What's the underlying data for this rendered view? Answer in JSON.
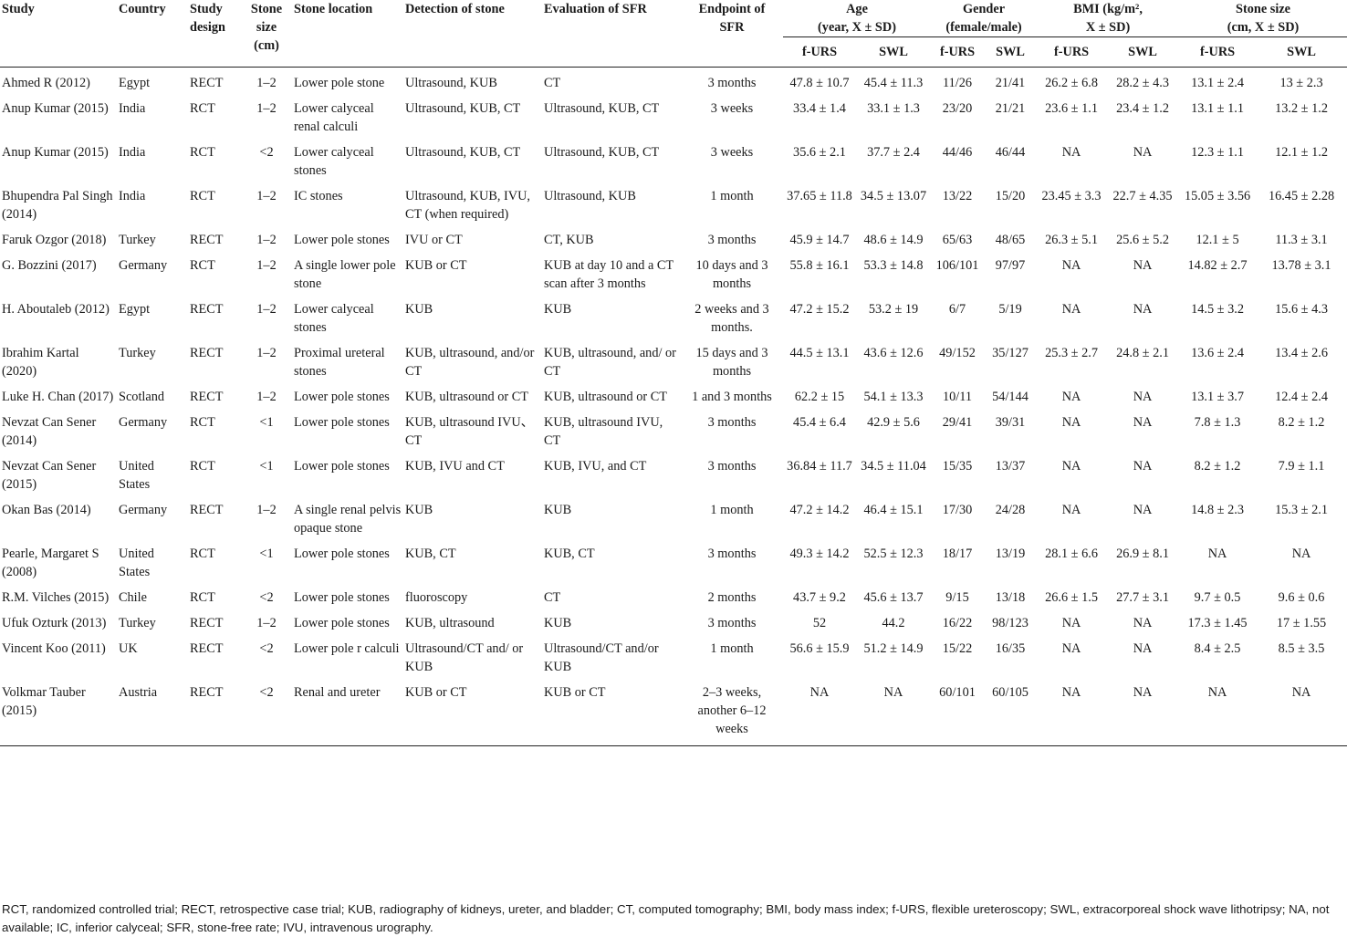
{
  "headers": {
    "study": "Study",
    "country": "Country",
    "design": [
      "Study",
      "design"
    ],
    "stone_size_cm": [
      "Stone",
      "size",
      "(cm)"
    ],
    "location": "Stone location",
    "detection": "Detection of stone",
    "evaluation": "Evaluation of SFR",
    "endpoint": [
      "Endpoint of",
      "SFR"
    ],
    "age": [
      "Age",
      "(year, X ± SD)"
    ],
    "gender": [
      "Gender",
      "(female/male)"
    ],
    "bmi": [
      "BMI (kg/m²,",
      "X ± SD)"
    ],
    "stone_size": [
      "Stone size",
      "(cm, X ± SD)"
    ],
    "sub_furs": "f-URS",
    "sub_swl": "SWL"
  },
  "rows": [
    {
      "study": "Ahmed R (2012)",
      "country": "Egypt",
      "design": "RECT",
      "size": "1–2",
      "location": "Lower pole stone",
      "detection": "Ultrasound, KUB",
      "evaluation": "CT",
      "endpoint": "3 months",
      "age_furs": "47.8 ± 10.7",
      "age_swl": "45.4 ± 11.3",
      "g_furs": "11/26",
      "g_swl": "21/41",
      "bmi_furs": "26.2 ± 6.8",
      "bmi_swl": "28.2 ± 4.3",
      "ss_furs": "13.1 ± 2.4",
      "ss_swl": "13 ± 2.3"
    },
    {
      "study": "Anup Kumar (2015)",
      "country": "India",
      "design": "RCT",
      "size": "1–2",
      "location": "Lower calyceal renal calculi",
      "detection": "Ultrasound, KUB, CT",
      "evaluation": "Ultrasound, KUB, CT",
      "endpoint": "3 weeks",
      "age_furs": "33.4 ± 1.4",
      "age_swl": "33.1 ± 1.3",
      "g_furs": "23/20",
      "g_swl": "21/21",
      "bmi_furs": "23.6 ± 1.1",
      "bmi_swl": "23.4 ± 1.2",
      "ss_furs": "13.1 ± 1.1",
      "ss_swl": "13.2 ± 1.2"
    },
    {
      "study": "Anup Kumar (2015)",
      "country": "India",
      "design": "RCT",
      "size": "<2",
      "location": "Lower calyceal stones",
      "detection": "Ultrasound, KUB, CT",
      "evaluation": "Ultrasound, KUB, CT",
      "endpoint": "3 weeks",
      "age_furs": "35.6 ± 2.1",
      "age_swl": "37.7 ± 2.4",
      "g_furs": "44/46",
      "g_swl": "46/44",
      "bmi_furs": "NA",
      "bmi_swl": "NA",
      "ss_furs": "12.3 ± 1.1",
      "ss_swl": "12.1 ± 1.2"
    },
    {
      "study": "Bhupendra Pal Singh (2014)",
      "country": "India",
      "design": "RCT",
      "size": "1–2",
      "location": "IC stones",
      "detection": "Ultrasound, KUB, IVU, CT (when required)",
      "evaluation": "Ultrasound, KUB",
      "endpoint": "1 month",
      "age_furs": "37.65 ± 11.8",
      "age_swl": "34.5 ± 13.07",
      "g_furs": "13/22",
      "g_swl": "15/20",
      "bmi_furs": "23.45 ± 3.3",
      "bmi_swl": "22.7 ± 4.35",
      "ss_furs": "15.05 ± 3.56",
      "ss_swl": "16.45 ± 2.28"
    },
    {
      "study": "Faruk Ozgor (2018)",
      "country": "Turkey",
      "design": "RECT",
      "size": "1–2",
      "location": "Lower pole stones",
      "detection": "IVU or CT",
      "evaluation": "CT, KUB",
      "endpoint": "3 months",
      "age_furs": "45.9 ± 14.7",
      "age_swl": "48.6 ± 14.9",
      "g_furs": "65/63",
      "g_swl": "48/65",
      "bmi_furs": "26.3 ± 5.1",
      "bmi_swl": "25.6 ± 5.2",
      "ss_furs": "12.1 ± 5",
      "ss_swl": "11.3 ± 3.1"
    },
    {
      "study": "G. Bozzini (2017)",
      "country": "Germany",
      "design": "RCT",
      "size": "1–2",
      "location": "A single lower pole stone",
      "detection": "KUB or CT",
      "evaluation": "KUB at day 10 and a CT scan after 3 months",
      "endpoint": "10 days and 3 months",
      "age_furs": "55.8 ± 16.1",
      "age_swl": "53.3 ± 14.8",
      "g_furs": "106/101",
      "g_swl": "97/97",
      "bmi_furs": "NA",
      "bmi_swl": "NA",
      "ss_furs": "14.82 ± 2.7",
      "ss_swl": "13.78 ± 3.1"
    },
    {
      "study": "H. Aboutaleb (2012)",
      "country": "Egypt",
      "design": "RECT",
      "size": "1–2",
      "location": "Lower calyceal stones",
      "detection": "KUB",
      "evaluation": "KUB",
      "endpoint": "2 weeks and 3 months.",
      "age_furs": "47.2 ± 15.2",
      "age_swl": "53.2 ± 19",
      "g_furs": "6/7",
      "g_swl": "5/19",
      "bmi_furs": "NA",
      "bmi_swl": "NA",
      "ss_furs": "14.5 ± 3.2",
      "ss_swl": "15.6 ± 4.3"
    },
    {
      "study": "Ibrahim Kartal (2020)",
      "country": "Turkey",
      "design": "RECT",
      "size": "1–2",
      "location": "Proximal ureteral stones",
      "detection": "KUB, ultrasound, and/or CT",
      "evaluation": "KUB, ultrasound, and/ or CT",
      "endpoint": "15 days and 3 months",
      "age_furs": "44.5 ± 13.1",
      "age_swl": "43.6 ± 12.6",
      "g_furs": "49/152",
      "g_swl": "35/127",
      "bmi_furs": "25.3 ± 2.7",
      "bmi_swl": "24.8 ± 2.1",
      "ss_furs": "13.6 ± 2.4",
      "ss_swl": "13.4 ± 2.6"
    },
    {
      "study": "Luke H. Chan (2017)",
      "country": "Scotland",
      "design": "RECT",
      "size": "1–2",
      "location": "Lower pole stones",
      "detection": "KUB, ultrasound or CT",
      "evaluation": "KUB, ultrasound or CT",
      "endpoint": "1 and 3 months",
      "age_furs": "62.2 ± 15",
      "age_swl": "54.1 ± 13.3",
      "g_furs": "10/11",
      "g_swl": "54/144",
      "bmi_furs": "NA",
      "bmi_swl": "NA",
      "ss_furs": "13.1 ± 3.7",
      "ss_swl": "12.4 ± 2.4"
    },
    {
      "study": "Nevzat Can Sener (2014)",
      "country": "Germany",
      "design": "RCT",
      "size": "<1",
      "location": "Lower pole stones",
      "detection": "KUB, ultrasound IVU、CT",
      "evaluation": "KUB, ultrasound IVU, CT",
      "endpoint": "3 months",
      "age_furs": "45.4 ± 6.4",
      "age_swl": "42.9 ± 5.6",
      "g_furs": "29/41",
      "g_swl": "39/31",
      "bmi_furs": "NA",
      "bmi_swl": "NA",
      "ss_furs": "7.8 ± 1.3",
      "ss_swl": "8.2 ± 1.2"
    },
    {
      "study": "Nevzat Can Sener (2015)",
      "country": "United States",
      "design": "RCT",
      "size": "<1",
      "location": "Lower pole stones",
      "detection": "KUB, IVU and CT",
      "evaluation": "KUB, IVU, and CT",
      "endpoint": "3 months",
      "age_furs": "36.84 ± 11.7",
      "age_swl": "34.5 ± 11.04",
      "g_furs": "15/35",
      "g_swl": "13/37",
      "bmi_furs": "NA",
      "bmi_swl": "NA",
      "ss_furs": "8.2 ± 1.2",
      "ss_swl": "7.9 ± 1.1"
    },
    {
      "study": "Okan Bas (2014)",
      "country": "Germany",
      "design": "RECT",
      "size": "1–2",
      "location": "A single renal pelvis opaque stone",
      "detection": "KUB",
      "evaluation": "KUB",
      "endpoint": "1 month",
      "age_furs": "47.2 ± 14.2",
      "age_swl": "46.4 ± 15.1",
      "g_furs": "17/30",
      "g_swl": "24/28",
      "bmi_furs": "NA",
      "bmi_swl": "NA",
      "ss_furs": "14.8 ± 2.3",
      "ss_swl": "15.3 ± 2.1"
    },
    {
      "study": "Pearle, Margaret S (2008)",
      "country": "United States",
      "design": "RCT",
      "size": "<1",
      "location": "Lower pole stones",
      "detection": "KUB, CT",
      "evaluation": "KUB, CT",
      "endpoint": "3 months",
      "age_furs": "49.3 ± 14.2",
      "age_swl": "52.5 ± 12.3",
      "g_furs": "18/17",
      "g_swl": "13/19",
      "bmi_furs": "28.1 ± 6.6",
      "bmi_swl": "26.9 ± 8.1",
      "ss_furs": "NA",
      "ss_swl": "NA"
    },
    {
      "study": "R.M. Vilches (2015)",
      "country": "Chile",
      "design": "RCT",
      "size": "<2",
      "location": "Lower pole stones",
      "detection": "fluoroscopy",
      "evaluation": "CT",
      "endpoint": "2 months",
      "age_furs": "43.7 ± 9.2",
      "age_swl": "45.6 ± 13.7",
      "g_furs": "9/15",
      "g_swl": "13/18",
      "bmi_furs": "26.6 ± 1.5",
      "bmi_swl": "27.7 ± 3.1",
      "ss_furs": "9.7 ± 0.5",
      "ss_swl": "9.6 ± 0.6"
    },
    {
      "study": "Ufuk Ozturk (2013)",
      "country": "Turkey",
      "design": "RECT",
      "size": "1–2",
      "location": "Lower pole stones",
      "detection": "KUB, ultrasound",
      "evaluation": "KUB",
      "endpoint": "3 months",
      "age_furs": "52",
      "age_swl": "44.2",
      "g_furs": "16/22",
      "g_swl": "98/123",
      "bmi_furs": "NA",
      "bmi_swl": "NA",
      "ss_furs": "17.3 ± 1.45",
      "ss_swl": "17 ± 1.55"
    },
    {
      "study": "Vincent Koo (2011)",
      "country": "UK",
      "design": "RECT",
      "size": "<2",
      "location": "Lower pole r calculi",
      "detection": "Ultrasound/CT and/ or KUB",
      "evaluation": "Ultrasound/CT and/or KUB",
      "endpoint": "1 month",
      "age_furs": "56.6 ± 15.9",
      "age_swl": "51.2 ± 14.9",
      "g_furs": "15/22",
      "g_swl": "16/35",
      "bmi_furs": "NA",
      "bmi_swl": "NA",
      "ss_furs": "8.4 ± 2.5",
      "ss_swl": "8.5 ± 3.5"
    },
    {
      "study": "Volkmar Tauber (2015)",
      "country": "Austria",
      "design": "RECT",
      "size": "<2",
      "location": "Renal and ureter",
      "detection": "KUB or CT",
      "evaluation": "KUB or CT",
      "endpoint": "2–3 weeks, another 6–12 weeks",
      "age_furs": "NA",
      "age_swl": "NA",
      "g_furs": "60/101",
      "g_swl": "60/105",
      "bmi_furs": "NA",
      "bmi_swl": "NA",
      "ss_furs": "NA",
      "ss_swl": "NA"
    }
  ],
  "footnote": "RCT, randomized controlled trial; RECT, retrospective case trial; KUB, radiography of kidneys, ureter, and bladder; CT, computed tomography; BMI, body mass index; f-URS, flexible ureteroscopy; SWL, extracorporeal shock wave lithotripsy; NA, not available; IC, inferior calyceal; SFR, stone-free rate; IVU, intravenous urography."
}
